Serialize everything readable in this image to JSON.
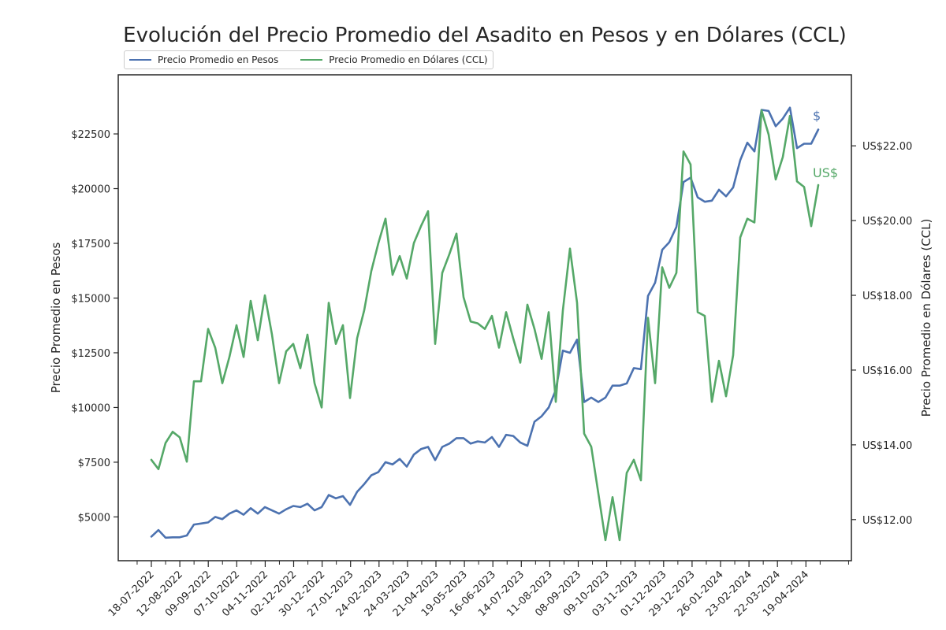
{
  "chart_data": {
    "type": "line",
    "title": "Evolución del Precio Promedio del Asadito en Pesos y en Dólares (CCL)",
    "ylabel_left": "Precio Promedio en Pesos",
    "ylabel_right": "Precio Promedio en Dólares (CCL)",
    "x_tick_labels": [
      "18-07-2022",
      "12-08-2022",
      "09-09-2022",
      "07-10-2022",
      "04-11-2022",
      "02-12-2022",
      "30-12-2022",
      "27-01-2023",
      "24-02-2023",
      "24-03-2023",
      "21-04-2023",
      "19-05-2023",
      "16-06-2023",
      "14-07-2023",
      "11-08-2023",
      "08-09-2023",
      "09-10-2023",
      "03-11-2023",
      "01-12-2023",
      "29-12-2023",
      "26-01-2024",
      "23-02-2024",
      "22-03-2024",
      "19-04-2024"
    ],
    "y_left_ticks": [
      "$5000",
      "$7500",
      "$10000",
      "$12500",
      "$15000",
      "$17500",
      "$20000",
      "$22500"
    ],
    "y_left_tick_values": [
      5000,
      7500,
      10000,
      12500,
      15000,
      17500,
      20000,
      22500
    ],
    "y_right_ticks": [
      "US$12.00",
      "US$14.00",
      "US$16.00",
      "US$18.00",
      "US$20.00",
      "US$22.00"
    ],
    "y_right_tick_values": [
      12,
      14,
      16,
      18,
      20,
      22
    ],
    "ylim_left": [
      3000,
      25200
    ],
    "ylim_right": [
      10.9,
      23.9
    ],
    "legend_position": "top-left, above plot",
    "series": [
      {
        "name": "Precio Promedio en Pesos",
        "axis": "left",
        "color": "#4c72b0",
        "end_label": "$",
        "values": [
          4100,
          4400,
          4050,
          4070,
          4070,
          4150,
          4650,
          4700,
          4750,
          5000,
          4900,
          5150,
          5300,
          5100,
          5400,
          5150,
          5450,
          5300,
          5150,
          5350,
          5500,
          5450,
          5600,
          5300,
          5450,
          6000,
          5850,
          5950,
          5550,
          6150,
          6500,
          6900,
          7050,
          7500,
          7400,
          7650,
          7300,
          7850,
          8100,
          8200,
          7600,
          8200,
          8350,
          8600,
          8600,
          8350,
          8450,
          8400,
          8650,
          8200,
          8750,
          8700,
          8400,
          8250,
          9350,
          9600,
          10000,
          10800,
          12600,
          12500,
          13100,
          10250,
          10450,
          10250,
          10450,
          11000,
          11000,
          11100,
          11800,
          11750,
          15100,
          15700,
          17200,
          17550,
          18250,
          20300,
          20500,
          19600,
          19400,
          19450,
          19950,
          19650,
          20050,
          21300,
          22100,
          21700,
          23600,
          23550,
          22850,
          23200,
          23700,
          21850,
          22050,
          22050,
          22700
        ]
      },
      {
        "name": "Precio Promedio en Dólares (CCL)",
        "axis": "right",
        "color": "#55a868",
        "end_label": "US$",
        "values": [
          13.6,
          13.35,
          14.05,
          14.35,
          14.2,
          13.55,
          15.7,
          15.7,
          17.1,
          16.6,
          15.65,
          16.35,
          17.2,
          16.35,
          17.85,
          16.8,
          18.0,
          16.95,
          15.65,
          16.5,
          16.7,
          16.05,
          16.95,
          15.65,
          15.0,
          17.8,
          16.7,
          17.2,
          15.25,
          16.85,
          17.6,
          18.65,
          19.4,
          20.05,
          18.55,
          19.05,
          18.45,
          19.4,
          19.85,
          20.25,
          16.7,
          18.6,
          19.1,
          19.65,
          17.95,
          17.3,
          17.25,
          17.1,
          17.45,
          16.6,
          17.55,
          16.85,
          16.2,
          17.75,
          17.1,
          16.3,
          17.55,
          15.15,
          17.6,
          19.25,
          17.8,
          14.3,
          13.95,
          12.7,
          11.45,
          12.6,
          11.45,
          13.25,
          13.6,
          13.05,
          17.4,
          15.65,
          18.75,
          18.2,
          18.6,
          21.85,
          21.5,
          17.55,
          17.45,
          15.15,
          16.25,
          15.3,
          16.4,
          19.55,
          20.05,
          19.95,
          22.95,
          22.3,
          21.1,
          21.7,
          22.8,
          21.05,
          20.9,
          19.85,
          20.95
        ]
      }
    ]
  }
}
